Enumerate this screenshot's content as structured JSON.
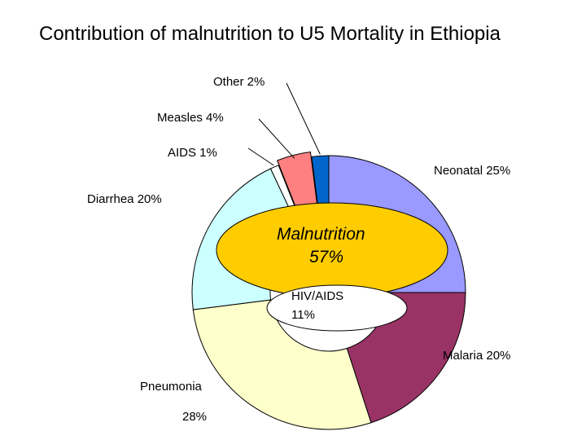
{
  "title": "Contribution of malnutrition to U5 Mortality in Ethiopia",
  "chart_data": {
    "type": "pie",
    "title": "Contribution of malnutrition to U5 Mortality in Ethiopia",
    "slices": [
      {
        "label": "Neonatal",
        "value": 25,
        "value_label": "25%",
        "color": "#9999FF"
      },
      {
        "label": "Malaria",
        "value": 20,
        "value_label": "20%",
        "color": "#993366"
      },
      {
        "label": "Pneumonia",
        "value": 28,
        "value_label": "28%",
        "color": "#FFFFCC"
      },
      {
        "label": "Diarrhea",
        "value": 20,
        "value_label": "20%",
        "color": "#CCFFFF"
      },
      {
        "label": "AIDS",
        "value": 1,
        "value_label": "1%",
        "color": "#FFFFFF"
      },
      {
        "label": "Measles",
        "value": 4,
        "value_label": "4%",
        "color": "#FF8080"
      },
      {
        "label": "Other",
        "value": 2,
        "value_label": "2%",
        "color": "#0066CC"
      }
    ],
    "slice_label_text": {
      "Neonatal": "Neonatal 25%",
      "Malaria": "Malaria 20%",
      "Pneumonia": "Pneumonia",
      "Pneumonia_pct": "28%",
      "Diarrhea": "Diarrhea 20%",
      "AIDS": "AIDS 1%",
      "Measles": "Measles 4%",
      "Other": "Other 2%"
    },
    "center": {
      "malnutrition_label": "Malnutrition",
      "malnutrition_value": "57%",
      "malnutrition_color": "#FFCC00",
      "hiv_label": "HIV/AIDS",
      "hiv_value": "11%"
    }
  }
}
